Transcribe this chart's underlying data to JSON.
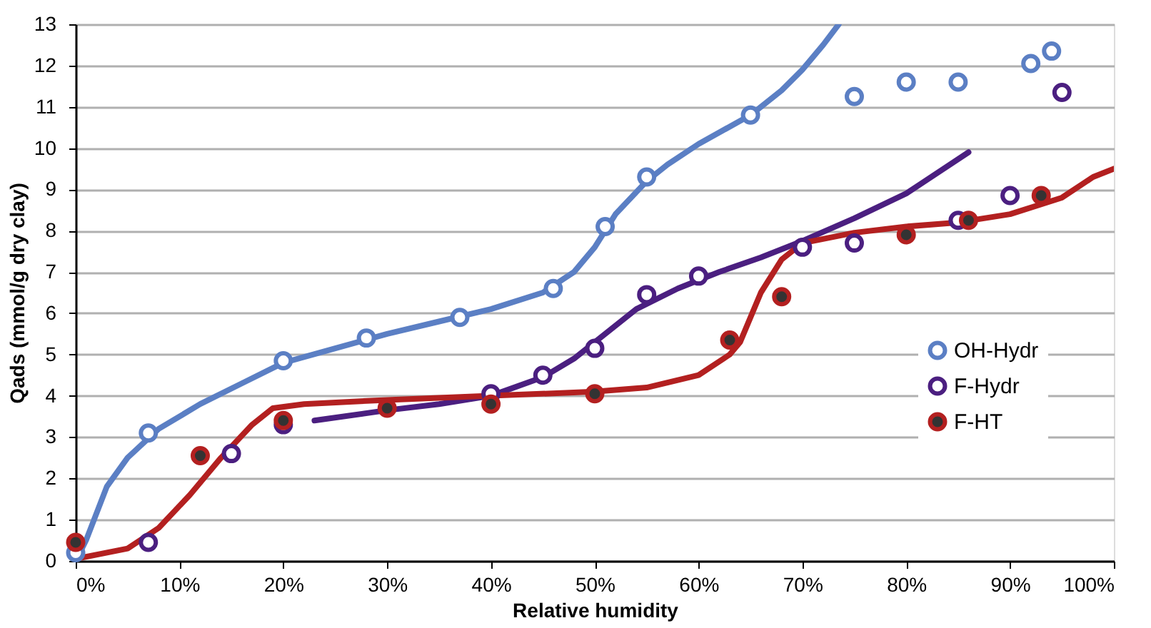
{
  "chart_data": {
    "type": "scatter",
    "xlabel": "Relative humidity",
    "ylabel": "Qads (mmol/g dry clay)",
    "xlim": [
      0,
      100
    ],
    "ylim": [
      0,
      13
    ],
    "xticks": [
      {
        "value": 0,
        "label": "0%"
      },
      {
        "value": 10,
        "label": "10%"
      },
      {
        "value": 20,
        "label": "20%"
      },
      {
        "value": 30,
        "label": "30%"
      },
      {
        "value": 40,
        "label": "40%"
      },
      {
        "value": 50,
        "label": "50%"
      },
      {
        "value": 60,
        "label": "60%"
      },
      {
        "value": 70,
        "label": "70%"
      },
      {
        "value": 80,
        "label": "80%"
      },
      {
        "value": 90,
        "label": "90%"
      },
      {
        "value": 100,
        "label": "100%"
      }
    ],
    "yticks": [
      0,
      1,
      2,
      3,
      4,
      5,
      6,
      7,
      8,
      9,
      10,
      11,
      12,
      13
    ],
    "grid": "y",
    "legend": "right",
    "marker": "circle",
    "series": [
      {
        "type": "line",
        "marker": "none",
        "color": "#5b7fc4",
        "x": [
          0,
          1,
          3,
          5,
          8,
          12,
          16,
          20,
          25,
          30,
          35,
          40,
          45,
          48,
          50,
          52,
          55,
          57,
          60,
          65,
          68,
          70,
          72,
          73.5
        ],
        "values": [
          0,
          0.5,
          1.8,
          2.5,
          3.2,
          3.8,
          4.3,
          4.8,
          5.15,
          5.5,
          5.8,
          6.1,
          6.5,
          7.0,
          7.6,
          8.4,
          9.2,
          9.6,
          10.1,
          10.8,
          11.4,
          11.9,
          12.5,
          13
        ]
      },
      {
        "type": "line",
        "marker": "none",
        "color": "#4b1f80",
        "x": [
          23,
          30,
          35,
          40,
          45,
          48,
          51,
          54,
          58,
          62,
          66,
          70,
          75,
          80,
          86
        ],
        "values": [
          3.4,
          3.65,
          3.8,
          4.0,
          4.45,
          4.9,
          5.5,
          6.1,
          6.6,
          7.0,
          7.35,
          7.75,
          8.3,
          8.9,
          9.9
        ]
      },
      {
        "type": "line",
        "marker": "none",
        "color": "#b32020",
        "x": [
          0,
          5,
          8,
          11,
          14,
          17,
          19,
          22,
          30,
          40,
          50,
          55,
          60,
          63,
          64,
          66,
          68,
          70,
          75,
          80,
          85,
          90,
          95,
          98,
          100
        ],
        "values": [
          0.05,
          0.3,
          0.8,
          1.6,
          2.5,
          3.3,
          3.7,
          3.8,
          3.9,
          4.0,
          4.1,
          4.2,
          4.5,
          5.0,
          5.3,
          6.5,
          7.3,
          7.7,
          7.95,
          8.1,
          8.2,
          8.4,
          8.8,
          9.3,
          9.5
        ]
      },
      {
        "name": "OH-Hydr",
        "color": "#5b7fc4",
        "x": [
          0,
          7,
          20,
          28,
          37,
          46,
          51,
          55,
          65,
          75,
          80,
          85,
          92,
          94
        ],
        "values": [
          0.2,
          3.1,
          4.85,
          5.4,
          5.9,
          6.6,
          8.1,
          9.3,
          10.8,
          11.25,
          11.6,
          11.6,
          12.05,
          12.35
        ]
      },
      {
        "name": "F-Hydr",
        "color": "#4b1f80",
        "x": [
          7,
          15,
          20,
          40,
          45,
          50,
          55,
          60,
          70,
          75,
          85,
          90,
          95
        ],
        "values": [
          0.45,
          2.6,
          3.3,
          4.05,
          4.5,
          5.15,
          6.45,
          6.9,
          7.6,
          7.7,
          8.25,
          8.85,
          11.35
        ]
      },
      {
        "name": "F-HT",
        "color": "#b32020",
        "x": [
          0,
          12,
          20,
          30,
          40,
          50,
          63,
          68,
          80,
          86,
          93
        ],
        "values": [
          0.45,
          2.55,
          3.4,
          3.7,
          3.8,
          4.05,
          5.35,
          6.4,
          7.9,
          8.25,
          8.85
        ]
      }
    ]
  }
}
